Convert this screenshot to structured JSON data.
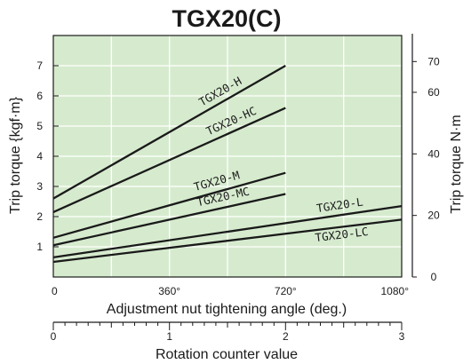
{
  "chart_data": {
    "type": "line",
    "title": "TGX20(C)",
    "xlabel": "Adjustment nut tightening angle (deg.)",
    "ylabel": "Trip torque  {kgf·m}",
    "y2label": "Trip torque  N·m",
    "x2label": "Rotation counter value",
    "xlim": [
      0,
      1080
    ],
    "ylim": [
      0,
      8
    ],
    "xticks": [
      0,
      360,
      720,
      1080
    ],
    "xtick_labels": [
      "0",
      "360°",
      "720°",
      "1080°"
    ],
    "yticks": [
      1,
      2,
      3,
      4,
      5,
      6,
      7
    ],
    "y2ticks": [
      0,
      20,
      40,
      60,
      70
    ],
    "x2ticks": [
      0,
      1,
      2,
      3
    ],
    "grid": true,
    "background": "#d6ebce",
    "line_color": "#1a1a1a",
    "series": [
      {
        "name": "TGX20-H",
        "x": [
          0,
          720
        ],
        "y": [
          2.6,
          7.0
        ]
      },
      {
        "name": "TGX20-HC",
        "x": [
          0,
          720
        ],
        "y": [
          2.15,
          5.6
        ]
      },
      {
        "name": "TGX20-M",
        "x": [
          0,
          720
        ],
        "y": [
          1.3,
          3.45
        ]
      },
      {
        "name": "TGX20-MC",
        "x": [
          0,
          720
        ],
        "y": [
          1.05,
          2.75
        ]
      },
      {
        "name": "TGX20-L",
        "x": [
          0,
          1080
        ],
        "y": [
          0.65,
          2.35
        ]
      },
      {
        "name": "TGX20-LC",
        "x": [
          0,
          1080
        ],
        "y": [
          0.5,
          1.9
        ]
      }
    ]
  }
}
